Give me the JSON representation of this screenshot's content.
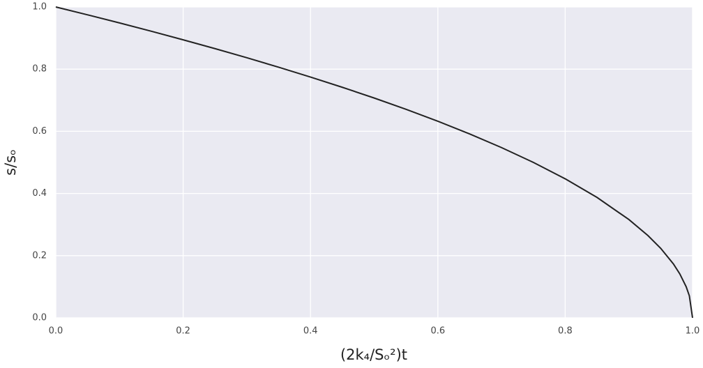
{
  "chart_data": {
    "type": "line",
    "xlabel": "(2k₄/Sₒ²)t",
    "ylabel": "s/sₒ",
    "x": [
      0,
      0.05,
      0.1,
      0.15,
      0.2,
      0.25,
      0.3,
      0.35,
      0.4,
      0.45,
      0.5,
      0.55,
      0.6,
      0.65,
      0.7,
      0.75,
      0.8,
      0.85,
      0.9,
      0.93,
      0.95,
      0.97,
      0.98,
      0.99,
      0.995,
      1.0
    ],
    "series": [
      {
        "color": "#222222",
        "values": [
          1,
          0.9747,
          0.9487,
          0.922,
          0.8944,
          0.866,
          0.8367,
          0.8062,
          0.7746,
          0.7416,
          0.7071,
          0.6708,
          0.6325,
          0.5916,
          0.5477,
          0.5,
          0.4472,
          0.3873,
          0.3162,
          0.2646,
          0.2236,
          0.1732,
          0.1414,
          0.1,
          0.0707,
          0
        ]
      }
    ],
    "xlim": [
      0,
      1
    ],
    "ylim": [
      0,
      1
    ],
    "xticks": [
      {
        "value": 0,
        "label": "0.0"
      },
      0.2,
      0.4,
      0.6,
      0.8,
      {
        "value": 1,
        "label": "1.0"
      }
    ],
    "yticks": [
      {
        "value": 0,
        "label": "0.0"
      },
      0.2,
      0.4,
      0.6,
      0.8,
      {
        "value": 1,
        "label": "1.0"
      }
    ],
    "grid": true
  }
}
